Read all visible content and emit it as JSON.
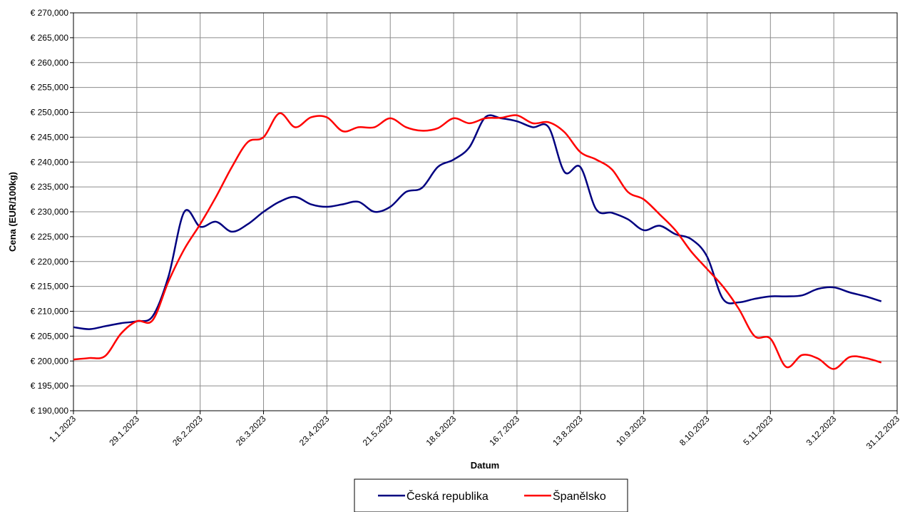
{
  "chart_data": {
    "type": "line",
    "y_label": "Cena (EUR/100kg)",
    "x_label": "Datum",
    "categories": [
      "1.1.2023",
      null,
      null,
      null,
      "29.1.2023",
      null,
      null,
      null,
      "26.2.2023",
      null,
      null,
      null,
      "26.3.2023",
      null,
      null,
      null,
      "23.4.2023",
      null,
      null,
      null,
      "21.5.2023",
      null,
      null,
      null,
      "18.6.2023",
      null,
      null,
      null,
      "16.7.2023",
      null,
      null,
      null,
      "13.8.2023",
      null,
      null,
      null,
      "10.9.2023",
      null,
      null,
      null,
      "8.10.2023",
      null,
      null,
      null,
      "5.11.2023",
      null,
      null,
      null,
      "3.12.2023",
      null,
      null,
      null,
      "31.12.2023"
    ],
    "series": [
      {
        "name": "Česká republika",
        "color": "#000080",
        "values": [
          206800,
          206400,
          207000,
          207600,
          208000,
          209000,
          217000,
          230000,
          227000,
          228000,
          226000,
          227500,
          230000,
          232000,
          233000,
          231500,
          231000,
          231500,
          232000,
          230000,
          231000,
          234000,
          234800,
          239000,
          240500,
          243000,
          249000,
          248800,
          248200,
          247000,
          247000,
          238000,
          239000,
          230500,
          229800,
          228500,
          226300,
          227200,
          225500,
          224500,
          221000,
          212500,
          211800,
          212500,
          213000,
          213000,
          213200,
          214500,
          214800,
          213800,
          213000,
          212000,
          null
        ]
      },
      {
        "name": "Španělsko",
        "color": "#ff0000",
        "values": [
          200300,
          200600,
          201000,
          205500,
          208000,
          208200,
          216000,
          222500,
          227500,
          233000,
          239000,
          244000,
          245000,
          249800,
          247000,
          249000,
          249000,
          246200,
          247000,
          247000,
          248800,
          247000,
          246300,
          246800,
          248800,
          247800,
          248800,
          248900,
          249400,
          247800,
          248000,
          246000,
          242000,
          240500,
          238500,
          234000,
          232500,
          229500,
          226300,
          222000,
          218500,
          215000,
          210500,
          205000,
          204500,
          198800,
          201200,
          200500,
          198400,
          200800,
          200600,
          199700,
          null
        ]
      }
    ],
    "ylim": [
      190000,
      270000
    ],
    "yticks": [
      {
        "value": 190000,
        "label": "€ 190,000"
      },
      {
        "value": 195000,
        "label": "€ 195,000"
      },
      {
        "value": 200000,
        "label": "€ 200,000"
      },
      {
        "value": 205000,
        "label": "€ 205,000"
      },
      {
        "value": 210000,
        "label": "€ 210,000"
      },
      {
        "value": 215000,
        "label": "€ 215,000"
      },
      {
        "value": 220000,
        "label": "€ 220,000"
      },
      {
        "value": 225000,
        "label": "€ 225,000"
      },
      {
        "value": 230000,
        "label": "€ 230,000"
      },
      {
        "value": 235000,
        "label": "€ 235,000"
      },
      {
        "value": 240000,
        "label": "€ 240,000"
      },
      {
        "value": 245000,
        "label": "€ 245,000"
      },
      {
        "value": 250000,
        "label": "€ 250,000"
      },
      {
        "value": 255000,
        "label": "€ 255,000"
      },
      {
        "value": 260000,
        "label": "€ 260,000"
      },
      {
        "value": 265000,
        "label": "€ 265,000"
      },
      {
        "value": 270000,
        "label": "€ 270,000"
      }
    ],
    "grid": true,
    "legend": "bottom"
  }
}
